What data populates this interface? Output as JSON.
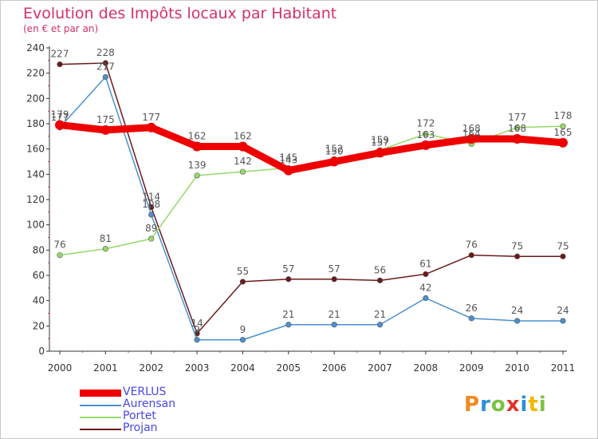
{
  "header": {
    "title": "Evolution des Impôts locaux par Habitant",
    "subtitle": "(en € et par an)"
  },
  "logo": {
    "text": "Proxiti",
    "colors": [
      "#f08a1c",
      "#2e8fd6",
      "#7cc242",
      "#e2322b",
      "#2e8fd6",
      "#f2b800",
      "#7cc242"
    ]
  },
  "chart_data": {
    "type": "line",
    "title": "Evolution des Impôts locaux par Habitant",
    "subtitle": "(en € et par an)",
    "xlabel": "",
    "ylabel": "",
    "categories": [
      "2000",
      "2001",
      "2002",
      "2003",
      "2004",
      "2005",
      "2006",
      "2007",
      "2008",
      "2009",
      "2010",
      "2011"
    ],
    "ylim": [
      0,
      240
    ],
    "yticks": [
      "0",
      "20",
      "40",
      "60",
      "80",
      "100",
      "120",
      "140",
      "160",
      "180",
      "200",
      "220",
      "240"
    ],
    "grid": false,
    "legend_position": "bottom-left",
    "series": [
      {
        "name": "Projan",
        "color": "#6b1a1a",
        "values": [
          227,
          228,
          114,
          14,
          55,
          57,
          57,
          56,
          61,
          76,
          75,
          75
        ],
        "labels": [
          "227",
          "228",
          "114",
          "14",
          "55",
          "57",
          "57",
          "56",
          "61",
          "76",
          "75",
          "75"
        ]
      },
      {
        "name": "Aurensan",
        "color": "#4a90d0",
        "values": [
          177,
          217,
          108,
          9,
          9,
          21,
          21,
          21,
          42,
          26,
          24,
          24
        ],
        "labels": [
          "177",
          "217",
          "108",
          "9",
          "9",
          "21",
          "21",
          "21",
          "42",
          "26",
          "24",
          "24"
        ]
      },
      {
        "name": "Portet",
        "color": "#96d96a",
        "values": [
          76,
          81,
          89,
          139,
          142,
          145,
          152,
          159,
          172,
          164,
          177,
          178
        ],
        "labels": [
          "76",
          "81",
          "89",
          "139",
          "142",
          "145",
          "152",
          "159",
          "172",
          "164",
          "177",
          "178"
        ]
      },
      {
        "name": "VERLUS",
        "color": "#ee0000",
        "values": [
          179,
          175,
          177,
          162,
          162,
          143,
          150,
          157,
          163,
          168,
          168,
          165
        ],
        "labels": [
          "179",
          "175",
          "177",
          "162",
          "162",
          "143",
          "150",
          "157",
          "163",
          "168",
          "168",
          "165"
        ]
      }
    ],
    "legend": [
      "VERLUS",
      "Aurensan",
      "Portet",
      "Projan"
    ]
  }
}
